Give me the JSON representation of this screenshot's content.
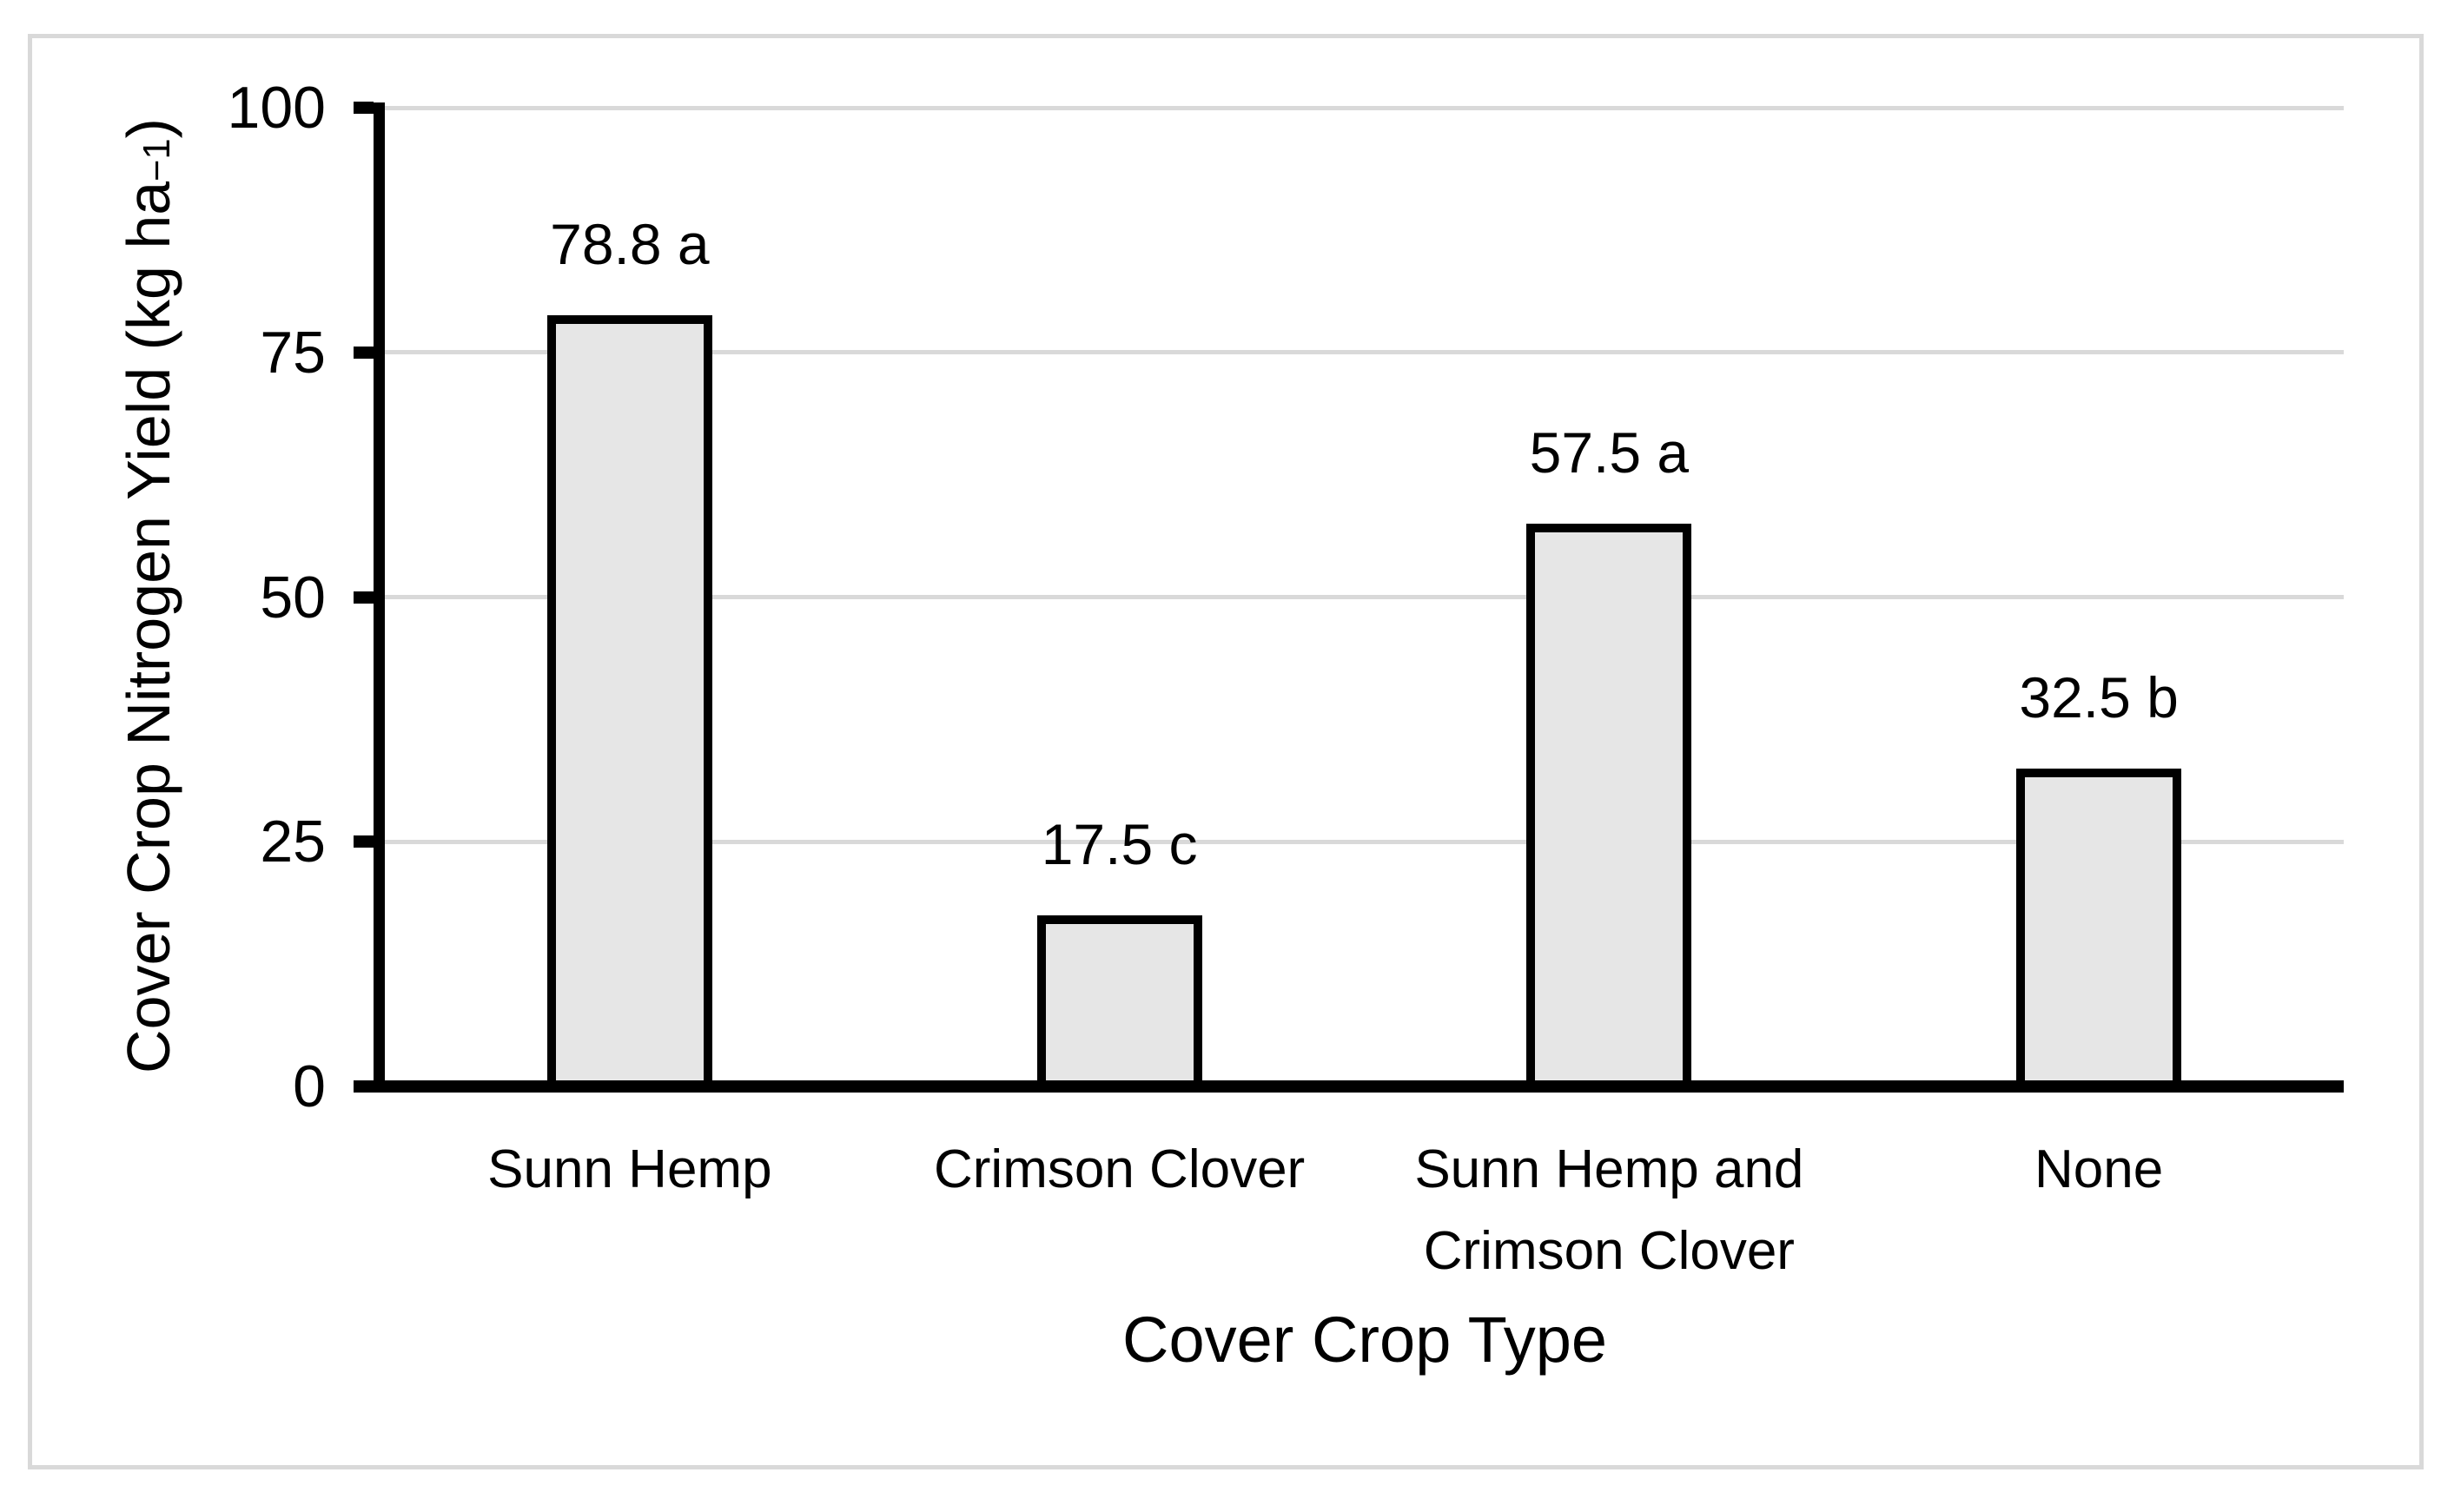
{
  "chart_data": {
    "type": "bar",
    "title": "",
    "categories": [
      "Sunn Hemp",
      "Crimson Clover",
      "Sunn Hemp and Crimson Clover",
      "None"
    ],
    "categories_display": [
      [
        "Sunn Hemp"
      ],
      [
        "Crimson Clover"
      ],
      [
        "Sunn Hemp and",
        "Crimson Clover"
      ],
      [
        "None"
      ]
    ],
    "values": [
      78.8,
      17.5,
      57.5,
      32.5
    ],
    "bar_labels": [
      "78.8 a",
      "17.5 c",
      "57.5 a",
      "32.5 b"
    ],
    "significance_letters": [
      "a",
      "c",
      "a",
      "b"
    ],
    "xlabel": "Cover Crop Type",
    "ylabel": "Cover Crop Nitrogen Yield (kg ha⁻¹)",
    "ylabel_parts": {
      "main": "Cover Crop Nitrogen Yield (kg ha",
      "superscript": "−1",
      "suffix": ")"
    },
    "ylim": [
      0,
      100
    ],
    "yticks": [
      0,
      25,
      50,
      75,
      100
    ],
    "grid": "horizontal",
    "legend": "none",
    "colors": {
      "bar_fill": "#e6e6e6",
      "bar_border": "#000000",
      "gridline": "#d9d9d9",
      "axis": "#000000",
      "frame_border": "#d9d9d9",
      "text": "#000000",
      "background": "#ffffff"
    }
  }
}
